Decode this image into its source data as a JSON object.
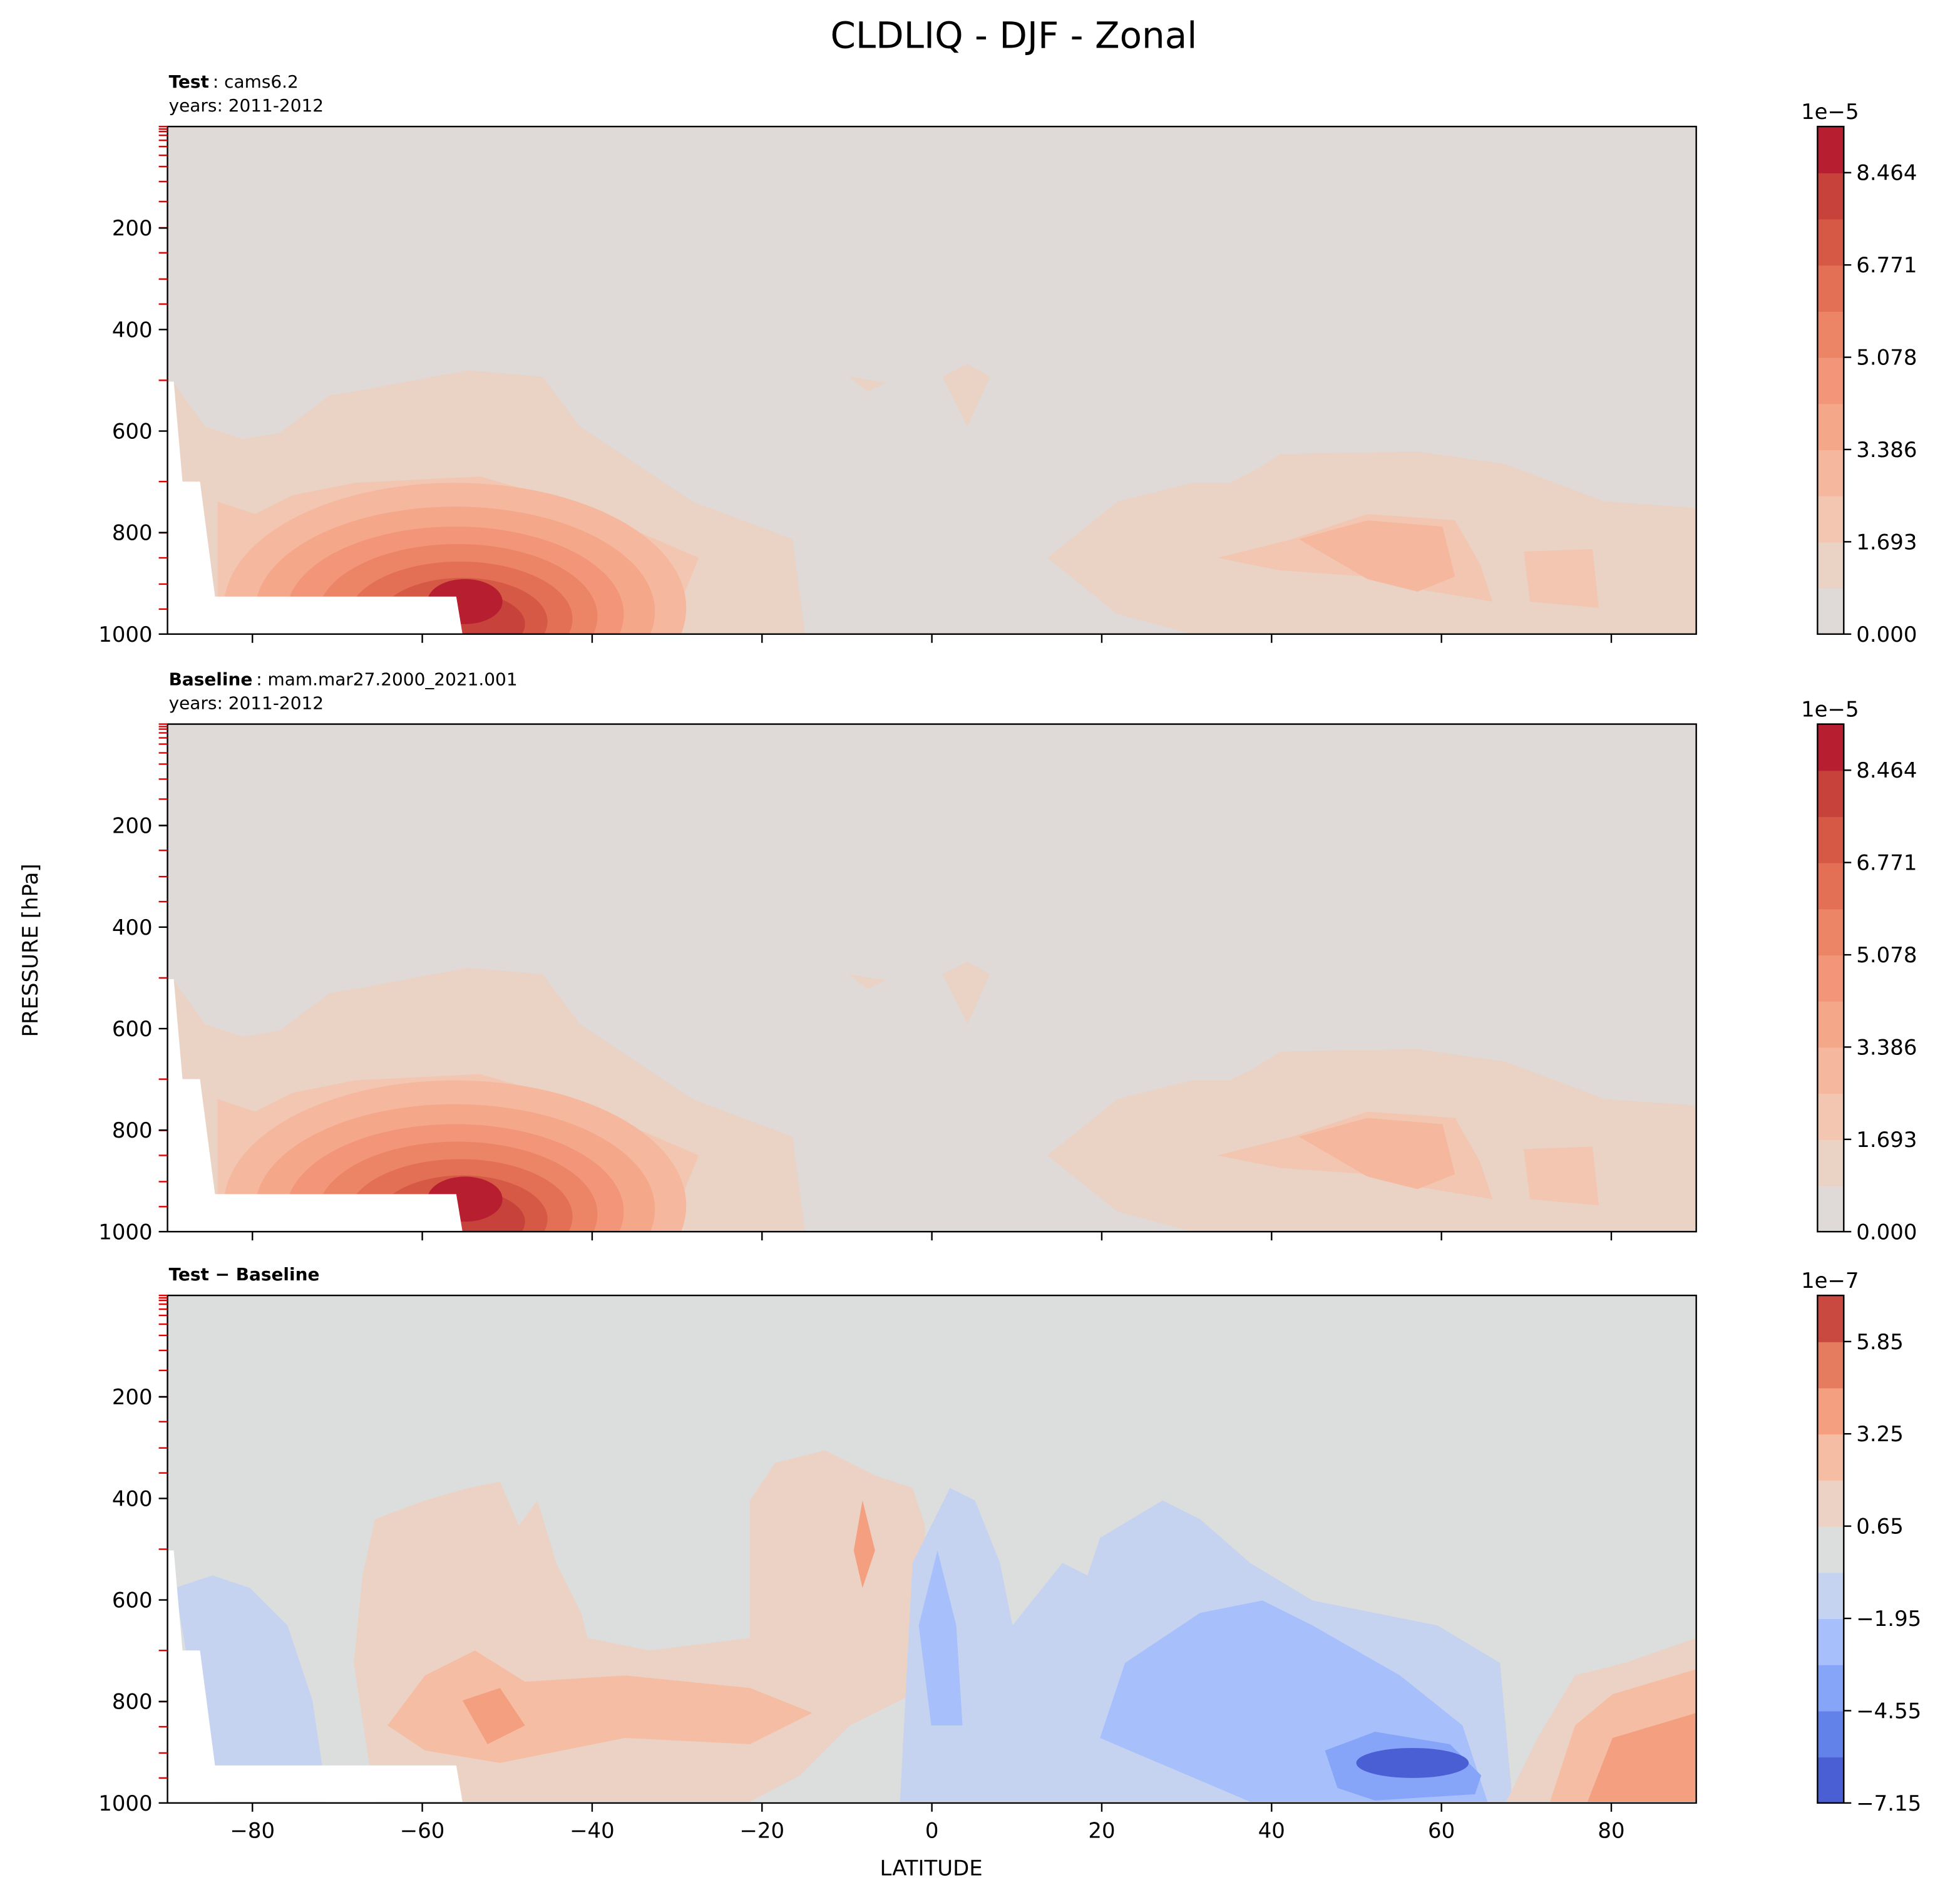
{
  "title": "CLDLIQ - DJF - Zonal",
  "ylabel": "PRESSURE [hPa]",
  "xlabel": "LATITUDE",
  "chart_data": [
    {
      "type": "contour",
      "title_bold": "Test",
      "title_rest": ": cams6.2",
      "subtitle": "years: 2011-2012",
      "xlim": [
        -90,
        90
      ],
      "xticks": [
        {
          "value": -80,
          "label": "−80"
        },
        {
          "value": -60,
          "label": "−60"
        },
        {
          "value": -40,
          "label": "−40"
        },
        {
          "value": -20,
          "label": "−20"
        },
        0,
        20,
        40,
        60,
        80
      ],
      "show_xticklabels": false,
      "ylim": [
        1000,
        0
      ],
      "yticks": [
        200,
        400,
        600,
        800,
        1000
      ],
      "clim": [
        0,
        9.31
      ],
      "colorbar_offset_label": "1e−5",
      "colorbar_ticks": [
        {
          "value": 0,
          "label": "0.000"
        },
        1.693,
        3.386,
        5.078,
        6.771,
        8.464
      ],
      "colors": [
        "#dfdad7",
        "#ead2c4",
        "#f2c6b0",
        "#f5b89e",
        "#f5a78a",
        "#f29578",
        "#ec8466",
        "#e36f55",
        "#d65945",
        "#c7423a",
        "#b71f30"
      ]
    },
    {
      "type": "contour",
      "title_bold": "Baseline",
      "title_rest": ": mam.mar27.2000_2021.001",
      "subtitle": "years: 2011-2012",
      "xlim": [
        -90,
        90
      ],
      "xticks": [
        {
          "value": -80,
          "label": "−80"
        },
        {
          "value": -60,
          "label": "−60"
        },
        {
          "value": -40,
          "label": "−40"
        },
        {
          "value": -20,
          "label": "−20"
        },
        0,
        20,
        40,
        60,
        80
      ],
      "show_xticklabels": false,
      "ylim": [
        1000,
        0
      ],
      "yticks": [
        200,
        400,
        600,
        800,
        1000
      ],
      "clim": [
        0,
        9.31
      ],
      "colorbar_offset_label": "1e−5",
      "colorbar_ticks": [
        {
          "value": 0,
          "label": "0.000"
        },
        1.693,
        3.386,
        5.078,
        6.771,
        8.464
      ],
      "colors": [
        "#dfdad7",
        "#ead2c4",
        "#f2c6b0",
        "#f5b89e",
        "#f5a78a",
        "#f29578",
        "#ec8466",
        "#e36f55",
        "#d65945",
        "#c7423a",
        "#b71f30"
      ]
    },
    {
      "type": "contour",
      "title_bold": "Test − Baseline",
      "xlim": [
        -90,
        90
      ],
      "xticks": [
        {
          "value": -80,
          "label": "−80"
        },
        {
          "value": -60,
          "label": "−60"
        },
        {
          "value": -40,
          "label": "−40"
        },
        {
          "value": -20,
          "label": "−20"
        },
        0,
        20,
        40,
        60,
        80
      ],
      "show_xticklabels": true,
      "ylim": [
        1000,
        0
      ],
      "yticks": [
        200,
        400,
        600,
        800,
        1000
      ],
      "clim": [
        -7.15,
        7.15
      ],
      "colorbar_offset_label": "1e−7",
      "colorbar_ticks": [
        {
          "value": -7.15,
          "label": "−7.15"
        },
        {
          "value": -4.55,
          "label": "−4.55"
        },
        {
          "value": -1.95,
          "label": "−1.95"
        },
        0.65,
        3.25,
        5.85
      ],
      "colors": [
        "#4a5fd3",
        "#6382e9",
        "#86a5f8",
        "#a7c0fb",
        "#c5d3f0",
        "#dcdddd",
        "#ecd2c4",
        "#f5bea4",
        "#f39f80",
        "#e57c60",
        "#c94840"
      ]
    }
  ]
}
